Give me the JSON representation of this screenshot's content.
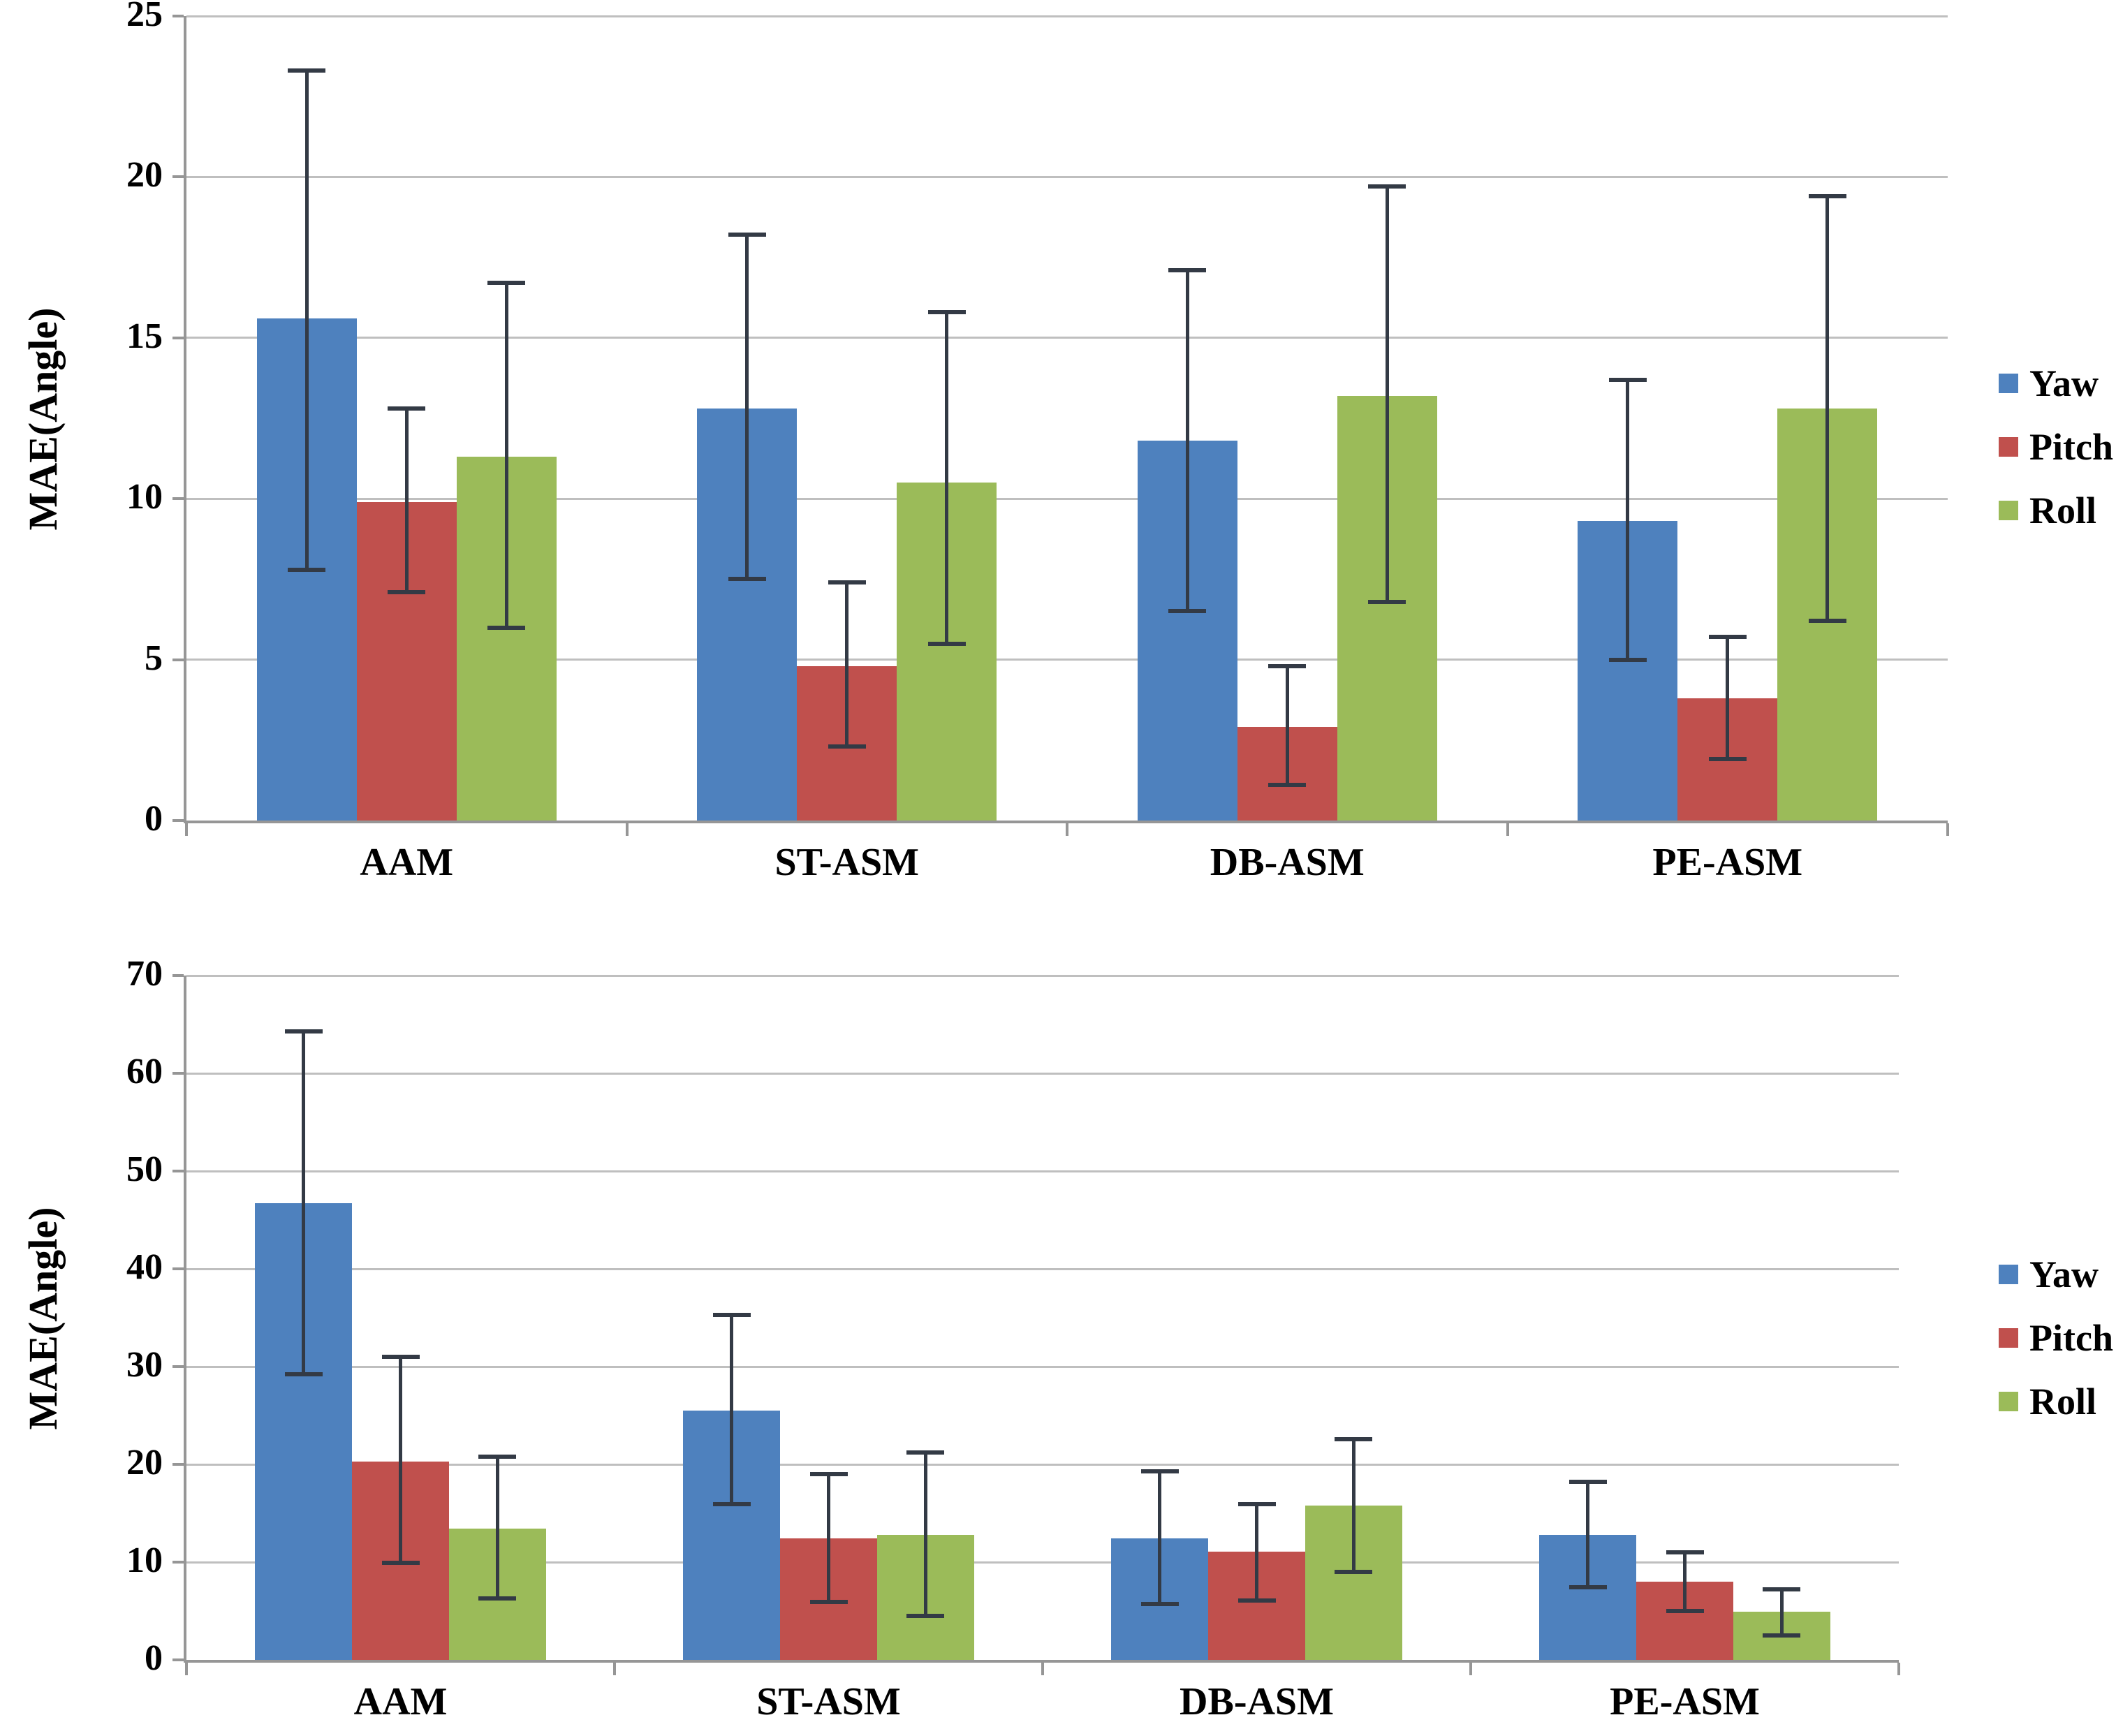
{
  "figure": {
    "description": "Two stacked grouped bar charts comparing head pose estimation methods",
    "background": "#ffffff"
  },
  "colors": {
    "yaw_blue": "#4E81BE",
    "pitch_red": "#C0504D",
    "roll_green": "#9BBB59",
    "error_bar": "#333A45",
    "gridline": "#BFBFBF",
    "axis": "#969696"
  },
  "chart_data": [
    {
      "type": "bar",
      "title": "",
      "xlabel": "",
      "ylabel": "MAE(Angle)",
      "ylim": [
        0,
        25
      ],
      "yticks": [
        0,
        5,
        10,
        15,
        20,
        25
      ],
      "grid": true,
      "legend_position": "right",
      "error_bars": true,
      "categories": [
        "AAM",
        "ST-ASM",
        "DB-ASM",
        "PE-ASM"
      ],
      "series": [
        {
          "name": "Yaw",
          "color": "#4E81BE",
          "values": [
            15.6,
            12.8,
            11.8,
            9.3
          ],
          "error_low": [
            7.8,
            7.5,
            6.5,
            5.0
          ],
          "error_high": [
            23.3,
            18.2,
            17.1,
            13.7
          ]
        },
        {
          "name": "Pitch",
          "color": "#C0504D",
          "values": [
            9.9,
            4.8,
            2.9,
            3.8
          ],
          "error_low": [
            7.1,
            2.3,
            1.1,
            1.9
          ],
          "error_high": [
            12.8,
            7.4,
            4.8,
            5.7
          ]
        },
        {
          "name": "Roll",
          "color": "#9BBB59",
          "values": [
            11.3,
            10.5,
            13.2,
            12.8
          ],
          "error_low": [
            6.0,
            5.5,
            6.8,
            6.2
          ],
          "error_high": [
            16.7,
            15.8,
            19.7,
            19.4
          ]
        }
      ]
    },
    {
      "type": "bar",
      "title": "",
      "xlabel": "",
      "ylabel": "MAE(Angle)",
      "ylim": [
        0,
        70
      ],
      "yticks": [
        0,
        10,
        20,
        30,
        40,
        50,
        60,
        70
      ],
      "grid": true,
      "legend_position": "right",
      "error_bars": true,
      "categories": [
        "AAM",
        "ST-ASM",
        "DB-ASM",
        "PE-ASM"
      ],
      "series": [
        {
          "name": "Yaw",
          "color": "#4E81BE",
          "values": [
            46.7,
            25.5,
            12.4,
            12.8
          ],
          "error_low": [
            29.2,
            15.9,
            5.7,
            7.4
          ],
          "error_high": [
            64.3,
            35.3,
            19.3,
            18.2
          ]
        },
        {
          "name": "Pitch",
          "color": "#C0504D",
          "values": [
            20.3,
            12.4,
            11.1,
            8.0
          ],
          "error_low": [
            9.9,
            5.9,
            6.1,
            5.0
          ],
          "error_high": [
            31.0,
            19.0,
            15.9,
            11.0
          ]
        },
        {
          "name": "Roll",
          "color": "#9BBB59",
          "values": [
            13.4,
            12.8,
            15.8,
            4.9
          ],
          "error_low": [
            6.3,
            4.5,
            9.0,
            2.5
          ],
          "error_high": [
            20.8,
            21.2,
            22.6,
            7.2
          ]
        }
      ]
    }
  ]
}
